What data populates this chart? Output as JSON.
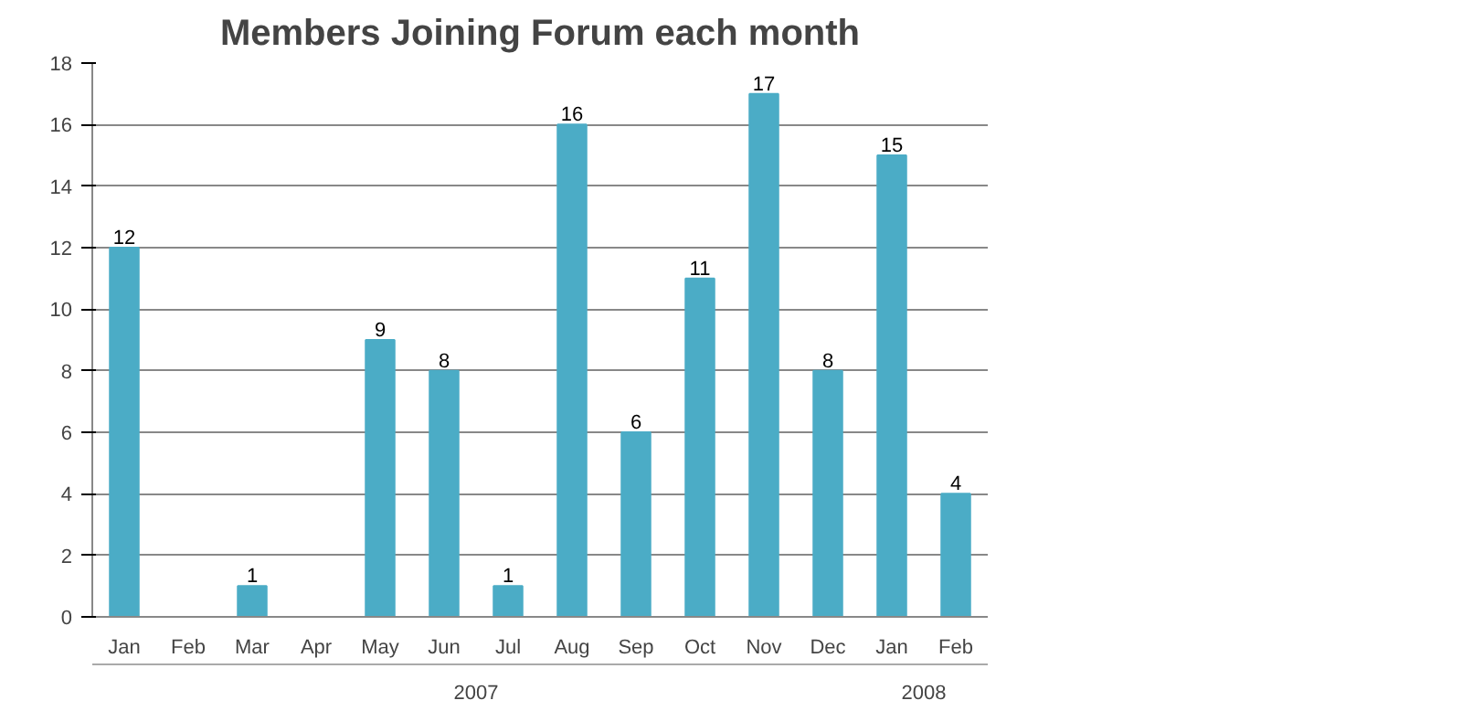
{
  "chart_data": {
    "type": "bar",
    "title": "Members Joining Forum each month",
    "categories": [
      "Jan",
      "Feb",
      "Mar",
      "Apr",
      "May",
      "Jun",
      "Jul",
      "Aug",
      "Sep",
      "Oct",
      "Nov",
      "Dec",
      "Jan",
      "Feb"
    ],
    "values": [
      12,
      0,
      1,
      0,
      9,
      8,
      1,
      16,
      6,
      11,
      17,
      8,
      15,
      4
    ],
    "value_labels": [
      "12",
      null,
      "1",
      null,
      "9",
      "8",
      "1",
      "16",
      "6",
      "11",
      "17",
      "8",
      "15",
      "4"
    ],
    "color": "#4bacc6",
    "ylim": [
      0,
      18
    ],
    "yticks": [
      0,
      2,
      4,
      6,
      8,
      10,
      12,
      14,
      16,
      18
    ],
    "grid": "y",
    "annotations": [
      "2007",
      "2008"
    ]
  }
}
